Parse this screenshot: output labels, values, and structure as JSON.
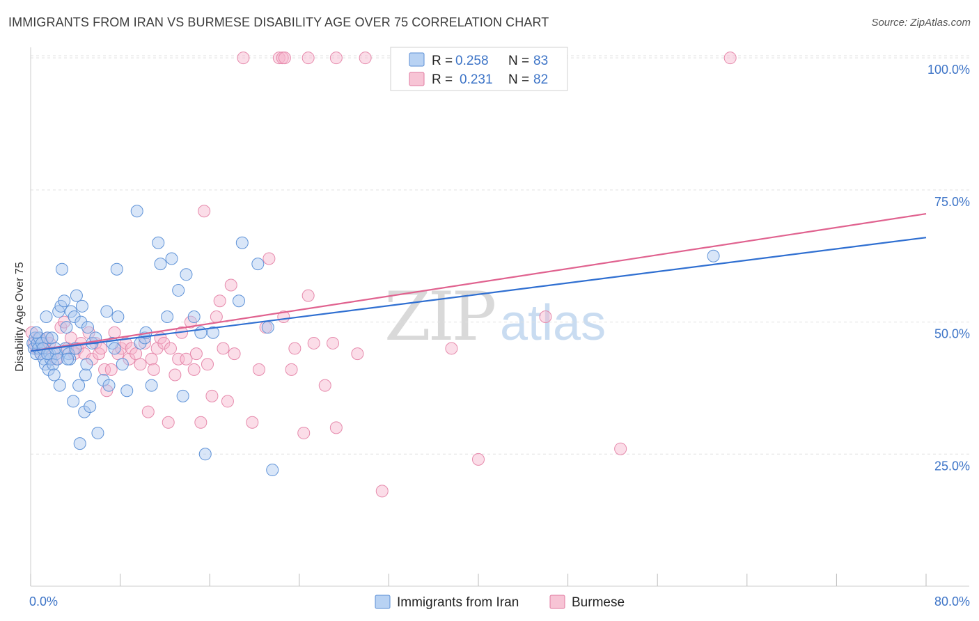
{
  "header": {
    "title": "IMMIGRANTS FROM IRAN VS BURMESE DISABILITY AGE OVER 75 CORRELATION CHART",
    "source": "Source: ZipAtlas.com"
  },
  "watermark": {
    "zip": "ZIP",
    "atlas": "atlas"
  },
  "legend": {
    "r_label": "R =",
    "n_label": "N =",
    "entries": [
      {
        "name": "Immigrants from Iran",
        "r": "0.258",
        "n": "83",
        "fill": "#b8d2f3",
        "stroke": "#5b8fd6"
      },
      {
        "name": "Burmese",
        "r": "0.231",
        "n": "82",
        "fill": "#f7c4d5",
        "stroke": "#e07aa0"
      }
    ]
  },
  "colors": {
    "blue_line": "#2f6fd1",
    "pink_line": "#e0628f",
    "tick_text": "#3d74c7",
    "grid": "#e0e0e0"
  },
  "chart_data": {
    "type": "scatter",
    "title": "IMMIGRANTS FROM IRAN VS BURMESE DISABILITY AGE OVER 75 CORRELATION CHART",
    "xlabel": "",
    "ylabel": "Disability Age Over 75",
    "xlim": [
      0,
      80
    ],
    "ylim": [
      0,
      102
    ],
    "x_tick_labels": [
      "0.0%",
      "80.0%"
    ],
    "y_ticks": [
      25,
      50,
      75,
      100
    ],
    "y_tick_labels": [
      "25.0%",
      "50.0%",
      "75.0%",
      "100.0%"
    ],
    "grid": true,
    "series": [
      {
        "name": "Immigrants from Iran",
        "r": 0.258,
        "n": 83,
        "trend": {
          "x": [
            0,
            80
          ],
          "y": [
            44.5,
            66.0
          ]
        },
        "points": [
          [
            0.2,
            46
          ],
          [
            0.3,
            45
          ],
          [
            0.4,
            47
          ],
          [
            0.5,
            44
          ],
          [
            0.6,
            46
          ],
          [
            0.7,
            45
          ],
          [
            0.8,
            47
          ],
          [
            0.9,
            44
          ],
          [
            1.0,
            46
          ],
          [
            1.1,
            45
          ],
          [
            1.2,
            43
          ],
          [
            1.3,
            42
          ],
          [
            1.4,
            51
          ],
          [
            1.5,
            47
          ],
          [
            1.6,
            41
          ],
          [
            1.7,
            44
          ],
          [
            1.8,
            43
          ],
          [
            1.9,
            47
          ],
          [
            2.0,
            42
          ],
          [
            2.1,
            40
          ],
          [
            2.3,
            44
          ],
          [
            2.4,
            43
          ],
          [
            2.5,
            52
          ],
          [
            2.6,
            38
          ],
          [
            2.7,
            53
          ],
          [
            2.8,
            60
          ],
          [
            3.0,
            54
          ],
          [
            3.1,
            45
          ],
          [
            3.2,
            49
          ],
          [
            3.4,
            44
          ],
          [
            3.5,
            43
          ],
          [
            3.6,
            52
          ],
          [
            3.8,
            35
          ],
          [
            3.9,
            51
          ],
          [
            4.0,
            45
          ],
          [
            4.1,
            55
          ],
          [
            4.3,
            38
          ],
          [
            4.4,
            27
          ],
          [
            4.5,
            50
          ],
          [
            4.6,
            53
          ],
          [
            4.8,
            33
          ],
          [
            4.9,
            40
          ],
          [
            5.0,
            42
          ],
          [
            5.1,
            49
          ],
          [
            5.3,
            34
          ],
          [
            5.5,
            46
          ],
          [
            6.0,
            29
          ],
          [
            6.5,
            39
          ],
          [
            6.8,
            52
          ],
          [
            7.0,
            38
          ],
          [
            7.3,
            46
          ],
          [
            7.5,
            45
          ],
          [
            7.7,
            60
          ],
          [
            7.8,
            51
          ],
          [
            8.2,
            42
          ],
          [
            8.6,
            37
          ],
          [
            9.5,
            71
          ],
          [
            9.8,
            46
          ],
          [
            10.2,
            47
          ],
          [
            10.3,
            48
          ],
          [
            10.8,
            38
          ],
          [
            11.4,
            65
          ],
          [
            11.6,
            61
          ],
          [
            12.2,
            51
          ],
          [
            12.6,
            62
          ],
          [
            13.2,
            56
          ],
          [
            13.6,
            36
          ],
          [
            13.9,
            59
          ],
          [
            14.6,
            51
          ],
          [
            15.2,
            48
          ],
          [
            15.6,
            25
          ],
          [
            16.3,
            48
          ],
          [
            18.6,
            54
          ],
          [
            18.9,
            65
          ],
          [
            20.3,
            61
          ],
          [
            21.2,
            49
          ],
          [
            21.6,
            22
          ],
          [
            61.0,
            62.5
          ],
          [
            0.5,
            48
          ],
          [
            1.5,
            44
          ],
          [
            2.2,
            45
          ],
          [
            3.3,
            43
          ],
          [
            5.8,
            47
          ]
        ]
      },
      {
        "name": "Burmese",
        "r": 0.231,
        "n": 82,
        "trend": {
          "x": [
            0,
            80
          ],
          "y": [
            44.5,
            70.5
          ]
        },
        "points": [
          [
            0.1,
            48
          ],
          [
            0.3,
            46
          ],
          [
            0.5,
            45
          ],
          [
            0.7,
            47
          ],
          [
            0.9,
            44
          ],
          [
            1.1,
            46
          ],
          [
            1.3,
            45
          ],
          [
            1.5,
            47
          ],
          [
            1.7,
            46
          ],
          [
            2.0,
            44
          ],
          [
            2.3,
            43
          ],
          [
            2.7,
            49
          ],
          [
            3.0,
            50
          ],
          [
            3.3,
            45
          ],
          [
            3.6,
            47
          ],
          [
            3.9,
            44
          ],
          [
            4.2,
            45
          ],
          [
            4.5,
            46
          ],
          [
            4.8,
            44
          ],
          [
            5.2,
            48
          ],
          [
            5.5,
            43
          ],
          [
            5.8,
            46
          ],
          [
            6.1,
            44
          ],
          [
            6.3,
            45
          ],
          [
            6.6,
            41
          ],
          [
            6.8,
            37
          ],
          [
            7.2,
            41
          ],
          [
            7.5,
            48
          ],
          [
            7.8,
            44
          ],
          [
            8.1,
            45
          ],
          [
            8.5,
            46
          ],
          [
            8.8,
            43
          ],
          [
            9.0,
            45
          ],
          [
            9.4,
            44
          ],
          [
            9.8,
            42
          ],
          [
            10.2,
            46
          ],
          [
            10.5,
            33
          ],
          [
            10.8,
            43
          ],
          [
            11.0,
            41
          ],
          [
            11.3,
            45
          ],
          [
            11.6,
            47
          ],
          [
            11.9,
            46
          ],
          [
            12.3,
            31
          ],
          [
            12.5,
            45
          ],
          [
            12.9,
            40
          ],
          [
            13.2,
            43
          ],
          [
            13.5,
            48
          ],
          [
            13.9,
            43
          ],
          [
            14.3,
            50
          ],
          [
            14.6,
            41
          ],
          [
            14.8,
            44
          ],
          [
            15.2,
            31
          ],
          [
            15.5,
            71
          ],
          [
            15.8,
            42
          ],
          [
            16.2,
            36
          ],
          [
            16.6,
            51
          ],
          [
            16.9,
            54
          ],
          [
            17.2,
            45
          ],
          [
            17.6,
            35
          ],
          [
            17.9,
            57
          ],
          [
            18.2,
            44
          ],
          [
            19.0,
            100
          ],
          [
            19.8,
            31
          ],
          [
            20.4,
            41
          ],
          [
            21.0,
            49
          ],
          [
            21.3,
            62
          ],
          [
            22.6,
            51
          ],
          [
            23.3,
            41
          ],
          [
            23.6,
            45
          ],
          [
            24.4,
            29
          ],
          [
            24.8,
            55
          ],
          [
            25.3,
            46
          ],
          [
            26.3,
            38
          ],
          [
            27.0,
            46
          ],
          [
            27.3,
            30
          ],
          [
            29.2,
            44
          ],
          [
            31.4,
            18
          ],
          [
            37.6,
            45
          ],
          [
            40.0,
            24
          ],
          [
            46.0,
            51
          ],
          [
            52.7,
            26
          ],
          [
            62.5,
            100
          ]
        ],
        "top_cluster": [
          [
            22.2,
            100
          ],
          [
            22.5,
            100
          ],
          [
            22.7,
            100
          ],
          [
            24.8,
            100
          ],
          [
            27.3,
            100
          ],
          [
            29.9,
            100
          ]
        ]
      }
    ]
  }
}
